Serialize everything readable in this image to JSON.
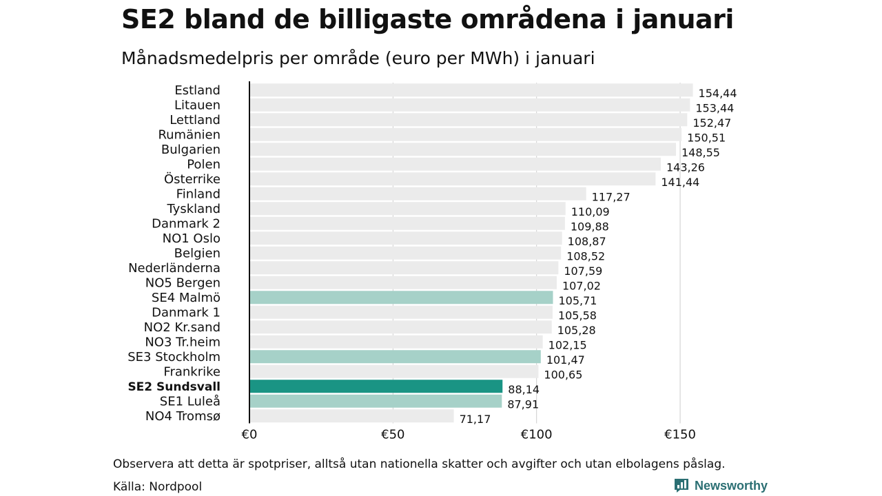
{
  "title": "SE2 bland de billigaste områdena i januari",
  "subtitle": "Månadsmedelpris per område (euro per MWh) i januari",
  "note": "Observera att detta är spotpriser, alltså utan nationella skatter och avgifter och utan elbolagens påslag.",
  "source": "Källa: Nordpool",
  "brand": "Newsworthy",
  "colors": {
    "default_bar": "#ebebeb",
    "swedish_bar": "#a6d1c8",
    "highlight_bar": "#1a9484",
    "brand": "#2b6f73",
    "axis": "#111111",
    "grid": "#cccccc"
  },
  "chart_data": {
    "type": "bar",
    "orientation": "horizontal",
    "title": "SE2 bland de billigaste områdena i januari",
    "xlabel": "",
    "ylabel": "",
    "xlim": [
      0,
      175
    ],
    "xticks": [
      0,
      50,
      100,
      150
    ],
    "xtick_labels": [
      "€0",
      "€50",
      "€100",
      "€150"
    ],
    "categories": [
      "Estland",
      "Litauen",
      "Lettland",
      "Rumänien",
      "Bulgarien",
      "Polen",
      "Österrike",
      "Finland",
      "Tyskland",
      "Danmark  2",
      "NO1 Oslo",
      "Belgien",
      "Nederländerna",
      "NO5 Bergen",
      "SE4  Malmö",
      "Danmark  1",
      "NO2 Kr.sand",
      "NO3 Tr.heim",
      "SE3  Stockholm",
      "Frankrike",
      "SE2 Sundsvall",
      "SE1  Luleå",
      "NO4 Tromsø"
    ],
    "values": [
      154.44,
      153.44,
      152.47,
      150.51,
      148.55,
      143.26,
      141.44,
      117.27,
      110.09,
      109.88,
      108.87,
      108.52,
      107.59,
      107.02,
      105.71,
      105.58,
      105.28,
      102.15,
      101.47,
      100.65,
      88.14,
      87.91,
      71.17
    ],
    "value_labels": [
      "154,44",
      "153,44",
      "152,47",
      "150,51",
      "148,55",
      "143,26",
      "141,44",
      "117,27",
      "110,09",
      "109,88",
      "108,87",
      "108,52",
      "107,59",
      "107,02",
      "105,71",
      "105,58",
      "105,28",
      "102,15",
      "101,47",
      "100,65",
      "88,14",
      "87,91",
      "71,17"
    ],
    "bar_style": [
      "default",
      "default",
      "default",
      "default",
      "default",
      "default",
      "default",
      "default",
      "default",
      "default",
      "default",
      "default",
      "default",
      "default",
      "swedish",
      "default",
      "default",
      "default",
      "swedish",
      "default",
      "highlight",
      "swedish",
      "default"
    ]
  }
}
